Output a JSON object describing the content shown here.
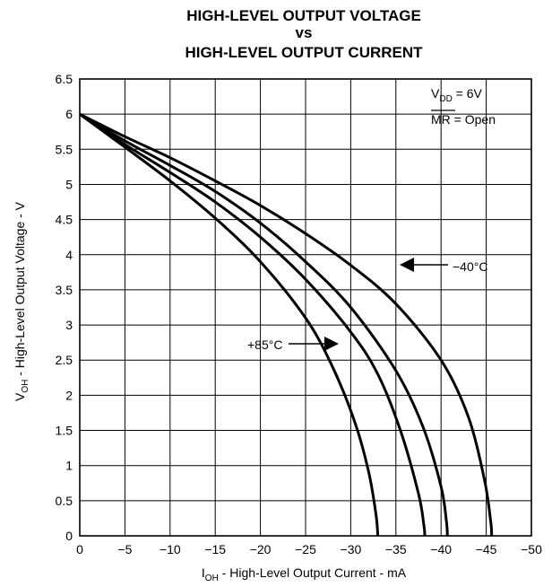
{
  "chart_data": {
    "type": "line",
    "title_lines": [
      "HIGH-LEVEL OUTPUT VOLTAGE",
      "vs",
      "HIGH-LEVEL OUTPUT CURRENT"
    ],
    "xlabel": {
      "main": "I",
      "sub": "OH",
      "rest": " - High-Level Output Current - mA"
    },
    "ylabel": {
      "main": "V",
      "sub": "OH",
      "rest": " - High-Level Output Voltage - V"
    },
    "xlim": [
      0,
      -50
    ],
    "ylim": [
      0,
      6.5
    ],
    "x_ticks": [
      0,
      -5,
      -10,
      -15,
      -20,
      -25,
      -30,
      -35,
      -40,
      -45,
      -50
    ],
    "x_tick_labels": [
      "0",
      "−5",
      "−10",
      "−15",
      "−20",
      "−25",
      "−30",
      "−35",
      "−40",
      "−45",
      "−50"
    ],
    "y_ticks": [
      0,
      0.5,
      1,
      1.5,
      2,
      2.5,
      3,
      3.5,
      4,
      4.5,
      5,
      5.5,
      6,
      6.5
    ],
    "y_tick_labels": [
      "0",
      "0.5",
      "1",
      "1.5",
      "2",
      "2.5",
      "3",
      "3.5",
      "4",
      "4.5",
      "5",
      "5.5",
      "6",
      "6.5"
    ],
    "grid": true,
    "conditions": {
      "vdd": {
        "main": "V",
        "sub": "DD",
        "rest": " = 6V"
      },
      "mr": {
        "main": "MR",
        "rest": " = Open"
      }
    },
    "series": [
      {
        "name": "−40°C",
        "x": [
          0,
          -5,
          -10,
          -15,
          -20,
          -25,
          -30,
          -35,
          -40,
          -43,
          -44.8,
          -45.5,
          -45.6
        ],
        "y": [
          6,
          5.68,
          5.38,
          5.05,
          4.7,
          4.3,
          3.85,
          3.3,
          2.5,
          1.7,
          0.8,
          0.2,
          0
        ]
      },
      {
        "name": "",
        "x": [
          0,
          -5,
          -10,
          -15,
          -20,
          -25,
          -30,
          -35,
          -38,
          -40,
          -40.6,
          -40.7
        ],
        "y": [
          6,
          5.62,
          5.27,
          4.9,
          4.45,
          3.9,
          3.25,
          2.35,
          1.55,
          0.7,
          0.2,
          0
        ]
      },
      {
        "name": "",
        "x": [
          0,
          -5,
          -10,
          -15,
          -20,
          -25,
          -30,
          -33,
          -35.5,
          -37.5,
          -38.1,
          -38.2
        ],
        "y": [
          6,
          5.57,
          5.17,
          4.75,
          4.25,
          3.65,
          2.9,
          2.3,
          1.5,
          0.6,
          0.15,
          0
        ]
      },
      {
        "name": "+85°C",
        "x": [
          0,
          -5,
          -10,
          -15,
          -20,
          -25,
          -28,
          -30.5,
          -32,
          -32.8,
          -33
        ],
        "y": [
          6,
          5.53,
          5.05,
          4.52,
          3.9,
          3.1,
          2.4,
          1.6,
          0.9,
          0.3,
          0
        ]
      }
    ],
    "annotations": [
      {
        "text": "−40°C",
        "series": 0
      },
      {
        "text": "+85°C",
        "series": 3
      }
    ]
  }
}
